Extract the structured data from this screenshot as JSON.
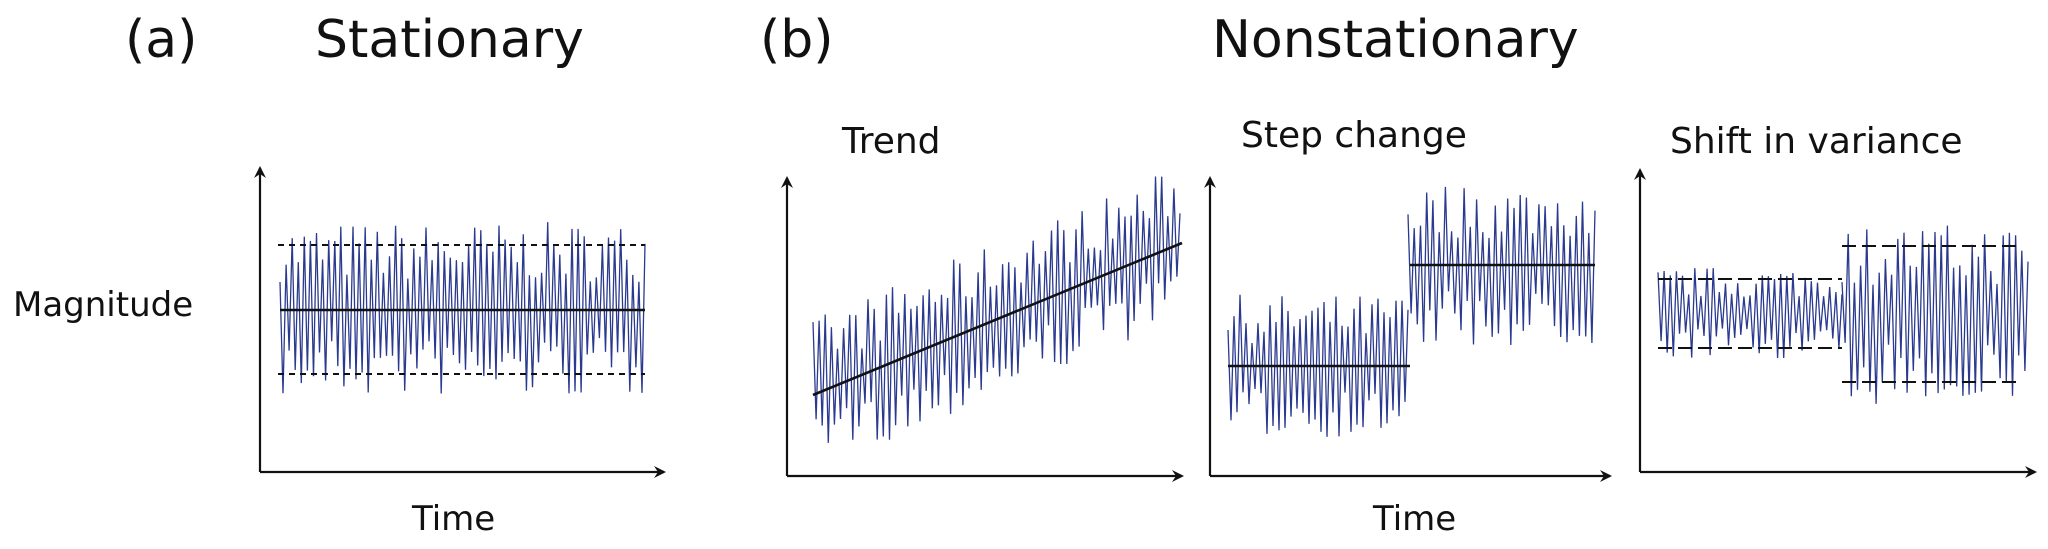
{
  "panel_a": {
    "label": "(a)",
    "title": "Stationary"
  },
  "panel_b": {
    "label": "(b)",
    "title": "Nonstationary"
  },
  "y_axis_label": "Magnitude",
  "x_axis_label": "Time",
  "subplots": {
    "stationary": {
      "title": ""
    },
    "trend": {
      "title": "Trend"
    },
    "step_change": {
      "title": "Step change"
    },
    "shift_variance": {
      "title": "Shift in variance"
    }
  },
  "colors": {
    "signal": "#2b3a8f",
    "lines": "#111111"
  }
}
